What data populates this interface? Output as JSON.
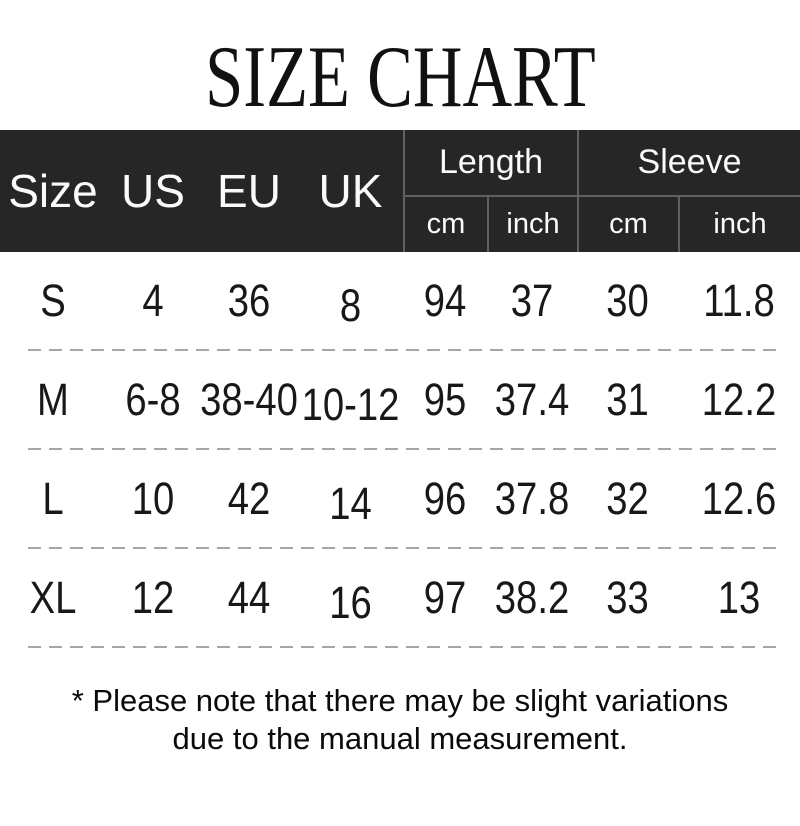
{
  "title": "SIZE CHART",
  "table": {
    "left_headers": [
      "Size",
      "US",
      "EU",
      "UK"
    ],
    "groups": [
      {
        "label": "Length",
        "sub_cm": "cm",
        "sub_inch": "inch"
      },
      {
        "label": "Sleeve",
        "sub_cm": "cm",
        "sub_inch": "inch"
      }
    ],
    "rows": [
      {
        "size": "S",
        "us": "4",
        "eu": "36",
        "uk": "8",
        "length_cm": "94",
        "length_inch": "37",
        "sleeve_cm": "30",
        "sleeve_inch": "11.8"
      },
      {
        "size": "M",
        "us": "6-8",
        "eu": "38-40",
        "uk": "10-12",
        "length_cm": "95",
        "length_inch": "37.4",
        "sleeve_cm": "31",
        "sleeve_inch": "12.2"
      },
      {
        "size": "L",
        "us": "10",
        "eu": "42",
        "uk": "14",
        "length_cm": "96",
        "length_inch": "37.8",
        "sleeve_cm": "32",
        "sleeve_inch": "12.6"
      },
      {
        "size": "XL",
        "us": "12",
        "eu": "44",
        "uk": "16",
        "length_cm": "97",
        "length_inch": "38.2",
        "sleeve_cm": "33",
        "sleeve_inch": "13"
      }
    ]
  },
  "note": {
    "line1": "* Please note that there may be slight variations",
    "line2": "due to the manual measurement."
  },
  "colors": {
    "header_bg": "#262626",
    "header_border": "#606060",
    "header_text": "#fafafa",
    "body_text": "#181818",
    "dashed_divider": "#a6a6a6",
    "title_text": "#111111",
    "page_bg": "#ffffff"
  }
}
